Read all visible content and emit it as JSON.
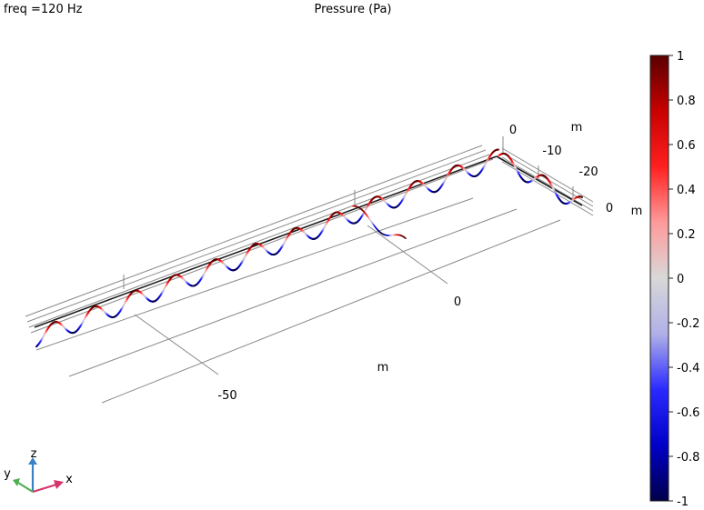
{
  "header": {
    "freq_label": "freq =120 Hz",
    "plot_title": "Pressure (Pa)"
  },
  "axes_3d": {
    "x_ticks": [
      "-50",
      "0"
    ],
    "x_unit": "m",
    "y_ticks": [
      "0",
      "-10",
      "-20"
    ],
    "y_unit": "m",
    "z_ticks": [
      "0"
    ],
    "z_unit": "m"
  },
  "triad": {
    "x_label": "x",
    "y_label": "y",
    "z_label": "z",
    "x_color": "#d6336c",
    "y_color": "#4caf50",
    "z_color": "#3b82c4"
  },
  "colorbar": {
    "min": -1,
    "max": 1,
    "ticks": [
      "1",
      "0.8",
      "0.6",
      "0.4",
      "0.2",
      "0",
      "-0.2",
      "-0.4",
      "-0.6",
      "-0.8",
      "-1"
    ],
    "colormap": "WaveLight",
    "stops": [
      "#00004a",
      "#0000c8",
      "#2a2aff",
      "#b0b0e8",
      "#d8d8d8",
      "#ff9a9a",
      "#ff2020",
      "#c80000",
      "#5a0000"
    ]
  },
  "chart_data": {
    "type": "line",
    "series": [
      {
        "wave": "sine",
        "periods": 11.5,
        "amplitude_range": [
          -1,
          1
        ]
      }
    ]
  }
}
